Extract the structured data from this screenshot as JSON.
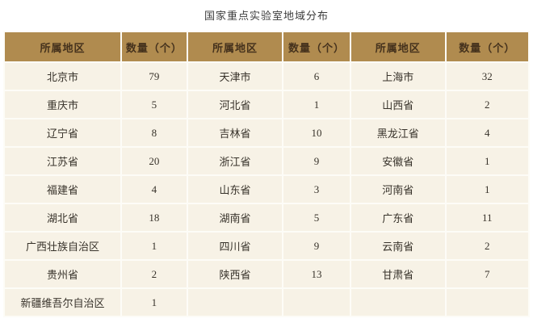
{
  "chart_data": {
    "type": "table",
    "title": "国家重点实验室地域分布",
    "headers": [
      "所属地区",
      "数量（个）",
      "所属地区",
      "数量（个）",
      "所属地区",
      "数量（个）"
    ],
    "rows": [
      [
        "北京市",
        "79",
        "天津市",
        "6",
        "上海市",
        "32"
      ],
      [
        "重庆市",
        "5",
        "河北省",
        "1",
        "山西省",
        "2"
      ],
      [
        "辽宁省",
        "8",
        "吉林省",
        "10",
        "黑龙江省",
        "4"
      ],
      [
        "江苏省",
        "20",
        "浙江省",
        "9",
        "安徽省",
        "1"
      ],
      [
        "福建省",
        "4",
        "山东省",
        "3",
        "河南省",
        "1"
      ],
      [
        "湖北省",
        "18",
        "湖南省",
        "5",
        "广东省",
        "11"
      ],
      [
        "广西壮族自治区",
        "1",
        "四川省",
        "9",
        "云南省",
        "2"
      ],
      [
        "贵州省",
        "2",
        "陕西省",
        "13",
        "甘肃省",
        "7"
      ],
      [
        "新疆维吾尔自治区",
        "1",
        "",
        "",
        "",
        ""
      ]
    ],
    "pairs": [
      {
        "region": "北京市",
        "count": 79
      },
      {
        "region": "重庆市",
        "count": 5
      },
      {
        "region": "辽宁省",
        "count": 8
      },
      {
        "region": "江苏省",
        "count": 20
      },
      {
        "region": "福建省",
        "count": 4
      },
      {
        "region": "湖北省",
        "count": 18
      },
      {
        "region": "广西壮族自治区",
        "count": 1
      },
      {
        "region": "贵州省",
        "count": 2
      },
      {
        "region": "新疆维吾尔自治区",
        "count": 1
      },
      {
        "region": "天津市",
        "count": 6
      },
      {
        "region": "河北省",
        "count": 1
      },
      {
        "region": "吉林省",
        "count": 10
      },
      {
        "region": "浙江省",
        "count": 9
      },
      {
        "region": "山东省",
        "count": 3
      },
      {
        "region": "湖南省",
        "count": 5
      },
      {
        "region": "四川省",
        "count": 9
      },
      {
        "region": "陕西省",
        "count": 13
      },
      {
        "region": "上海市",
        "count": 32
      },
      {
        "region": "山西省",
        "count": 2
      },
      {
        "region": "黑龙江省",
        "count": 4
      },
      {
        "region": "安徽省",
        "count": 1
      },
      {
        "region": "河南省",
        "count": 1
      },
      {
        "region": "广东省",
        "count": 11
      },
      {
        "region": "云南省",
        "count": 2
      },
      {
        "region": "甘肃省",
        "count": 7
      }
    ]
  },
  "colors": {
    "header_bg": "#b08b4f",
    "header_text": "#45321d",
    "cell_bg": "#f7f2e6",
    "grid_line": "#fdfcf7",
    "body_text": "#38332b",
    "title_text": "#3d3d3d",
    "page_bg": "#ffffff"
  }
}
